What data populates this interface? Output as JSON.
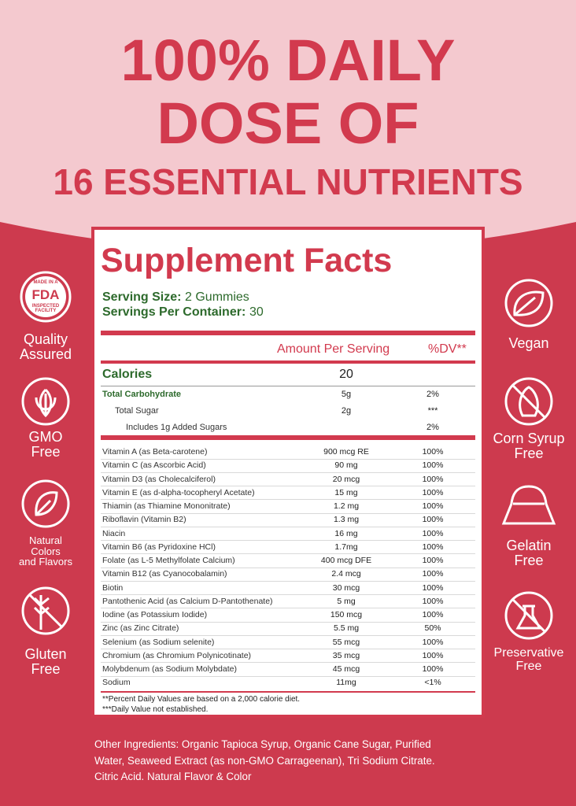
{
  "header": {
    "lines": [
      "100% DAILY",
      "DOSE OF",
      "16 ESSENTIAL NUTRIENTS"
    ]
  },
  "fda_seal": {
    "top": "MADE IN A",
    "main": "FDA",
    "bottom": "INSPECTED FACILITY"
  },
  "left_badges": [
    {
      "label": [
        "Quality",
        "Assured"
      ]
    },
    {
      "label": [
        "GMO",
        "Free"
      ]
    },
    {
      "label": [
        "Natural",
        "Colors",
        "and Flavors"
      ]
    },
    {
      "label": [
        "Gluten",
        "Free"
      ]
    }
  ],
  "right_badges": [
    {
      "label": [
        "Vegan"
      ]
    },
    {
      "label": [
        "Corn Syrup",
        "Free"
      ]
    },
    {
      "label": [
        "Gelatin",
        "Free"
      ]
    },
    {
      "label": [
        "Preservative",
        "Free"
      ]
    }
  ],
  "facts": {
    "title": "Supplement Facts",
    "serving_size": {
      "label": "Serving Size:",
      "value": "2 Gummies"
    },
    "servings_per_container": {
      "label": "Servings Per Container:",
      "value": "30"
    },
    "columns": [
      "Amount Per Serving",
      "%DV**"
    ],
    "calories": {
      "label": "Calories",
      "amount": "20"
    },
    "carbs": [
      {
        "name": "Total Carbohydrate",
        "amount": "5g",
        "dv": "2%"
      },
      {
        "name": "Total Sugar",
        "amount": "2g",
        "dv": "***"
      },
      {
        "name": "Includes 1g Added Sugars",
        "dv": "2%"
      }
    ],
    "nutrients": [
      {
        "name": "Vitamin A (as Beta-carotene)",
        "amount": "900 mcg RE",
        "dv": "100%"
      },
      {
        "name": "Vitamin C (as Ascorbic Acid)",
        "amount": "90 mg",
        "dv": "100%"
      },
      {
        "name": "Vitamin D3 (as Cholecalciferol)",
        "amount": "20 mcg",
        "dv": "100%"
      },
      {
        "name": "Vitamin E (as d-alpha-tocopheryl Acetate)",
        "amount": "15 mg",
        "dv": "100%"
      },
      {
        "name": "Thiamin (as Thiamine Mononitrate)",
        "amount": "1.2 mg",
        "dv": "100%"
      },
      {
        "name": "Riboflavin (Vitamin B2)",
        "amount": "1.3 mg",
        "dv": "100%"
      },
      {
        "name": "Niacin",
        "amount": "16 mg",
        "dv": "100%"
      },
      {
        "name": "Vitamin B6 (as Pyridoxine HCl)",
        "amount": "1.7mg",
        "dv": "100%"
      },
      {
        "name": "Folate (as L-5 Methylfolate Calcium)",
        "amount": "400 mcg DFE",
        "dv": "100%"
      },
      {
        "name": "Vitamin B12 (as Cyanocobalamin)",
        "amount": "2.4 mcg",
        "dv": "100%"
      },
      {
        "name": "Biotin",
        "amount": "30 mcg",
        "dv": "100%"
      },
      {
        "name": "Pantothenic Acid (as Calcium D-Pantothenate)",
        "amount": "5 mg",
        "dv": "100%"
      },
      {
        "name": "Iodine (as Potassium Iodide)",
        "amount": "150 mcg",
        "dv": "100%"
      },
      {
        "name": "Zinc (as Zinc Citrate)",
        "amount": "5.5 mg",
        "dv": "50%"
      },
      {
        "name": "Selenium (as Sodium selenite)",
        "amount": "55 mcg",
        "dv": "100%"
      },
      {
        "name": "Chromium (as Chromium Polynicotinate)",
        "amount": "35 mcg",
        "dv": "100%"
      },
      {
        "name": "Molybdenum (as Sodium Molybdate)",
        "amount": "45 mcg",
        "dv": "100%"
      },
      {
        "name": "Sodium",
        "amount": "11mg",
        "dv": "<1%"
      }
    ],
    "footnotes": [
      "**Percent Daily Values are based on a 2,000 calorie diet.",
      "***Daily Value not established."
    ]
  },
  "other_ingredients": [
    "Other Ingredients: Organic Tapioca Syrup, Organic Cane Sugar, Purified",
    "Water, Seaweed Extract (as non-GMO Carrageenan), Tri Sodium Citrate.",
    "Citric Acid. Natural Flavor & Color"
  ]
}
